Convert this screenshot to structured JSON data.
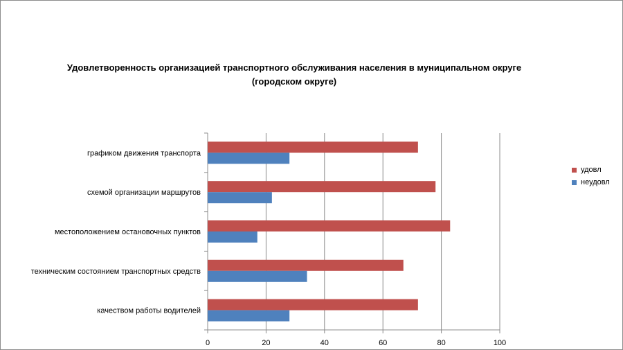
{
  "chart_data": {
    "type": "bar",
    "orientation": "horizontal",
    "title": "Удовлетворенность организацией транспортного обслуживания населения в муниципальном округе (городском округе)",
    "title_lines": [
      "Удовлетворенность организацией транспортного обслуживания населения в муниципальном округе",
      "(городском округе)"
    ],
    "categories": [
      "графиком движения транспорта",
      "схемой организации маршрутов",
      "местоположением остановочных пунктов",
      "техническим состоянием транспортных средств",
      "качеством работы водителей"
    ],
    "series": [
      {
        "name": "удовл",
        "color": "#c0504d",
        "values": [
          72,
          78,
          83,
          67,
          72
        ]
      },
      {
        "name": "неудовл",
        "color": "#4f81bd",
        "values": [
          28,
          22,
          17,
          34,
          28
        ]
      }
    ],
    "xlim": [
      0,
      100
    ],
    "x_ticks": [
      "0",
      "20",
      "40",
      "60",
      "80",
      "100"
    ],
    "grid": "vertical",
    "legend_position": "right"
  }
}
